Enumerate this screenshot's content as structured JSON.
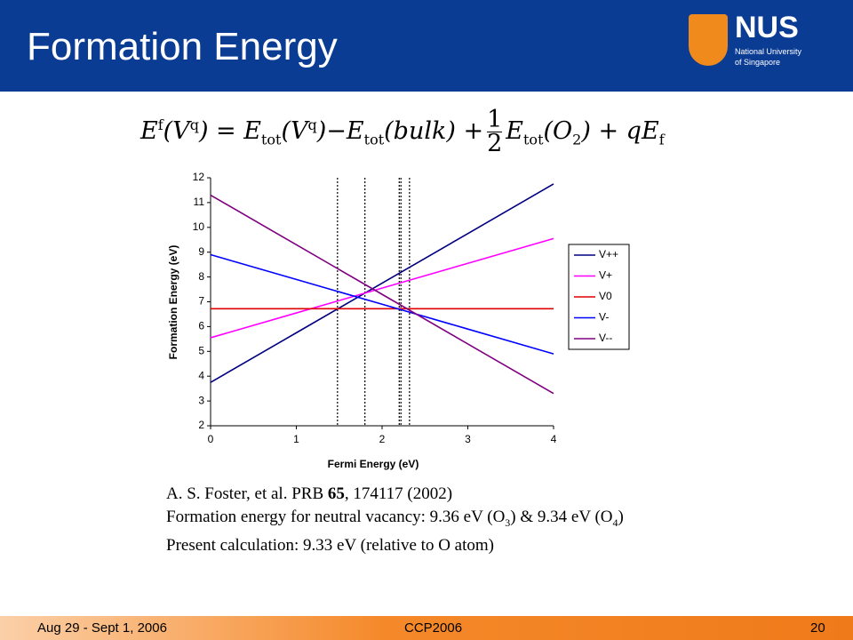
{
  "header": {
    "title": "Formation Energy",
    "logo": "NUS",
    "logo_lines": [
      "National University",
      "of Singapore"
    ]
  },
  "equation": [
    "E",
    "f",
    "(V",
    "q",
    ") = E",
    "tot",
    "(V",
    "q",
    ")−E",
    "tot",
    "(bulk) +",
    "1",
    "2",
    "E",
    "tot",
    "(O",
    "2",
    ") + qE",
    "f"
  ],
  "chart_data": {
    "type": "line",
    "x_label": "Fermi Energy (eV)",
    "y_label": "Formation Energy (eV)",
    "x": [
      0,
      1,
      2,
      3,
      4
    ],
    "series": [
      {
        "name": "V++",
        "color": "#000080",
        "values": [
          3.75,
          5.75,
          7.75,
          9.75,
          11.75
        ]
      },
      {
        "name": "V+",
        "color": "#ff00ff",
        "values": [
          5.55,
          6.55,
          7.55,
          8.55,
          9.55
        ]
      },
      {
        "name": "V0",
        "color": "#e00000",
        "values": [
          6.72,
          6.72,
          6.72,
          6.72,
          6.72
        ]
      },
      {
        "name": "V-",
        "color": "#0000ff",
        "values": [
          8.9,
          7.9,
          6.9,
          5.9,
          4.9
        ]
      },
      {
        "name": "V--",
        "color": "#800080",
        "values": [
          11.3,
          9.3,
          7.3,
          5.3,
          3.3
        ]
      }
    ],
    "vlines": [
      1.48,
      1.8,
      2.2,
      2.22,
      2.32
    ],
    "xlim": [
      0,
      4
    ],
    "xticks": [
      0,
      1,
      2,
      3,
      4
    ],
    "ylim": [
      2,
      12
    ],
    "yticks": [
      2,
      3,
      4,
      5,
      6,
      7,
      8,
      9,
      10,
      11,
      12
    ],
    "grid": false,
    "legend": "right"
  },
  "notes": {
    "line1": [
      "A. S. Foster, et al. PRB ",
      "65",
      ", 174117 (2002)"
    ],
    "line2": [
      "Formation energy for neutral vacancy: 9.36 eV (O",
      "3",
      ") & 9.34 eV (O",
      "4",
      ")"
    ],
    "line3": "Present calculation: 9.33 eV (relative to O atom)"
  },
  "footer": {
    "date": "Aug 29 - Sept 1, 2006",
    "event": "CCP2006",
    "page": "20"
  }
}
